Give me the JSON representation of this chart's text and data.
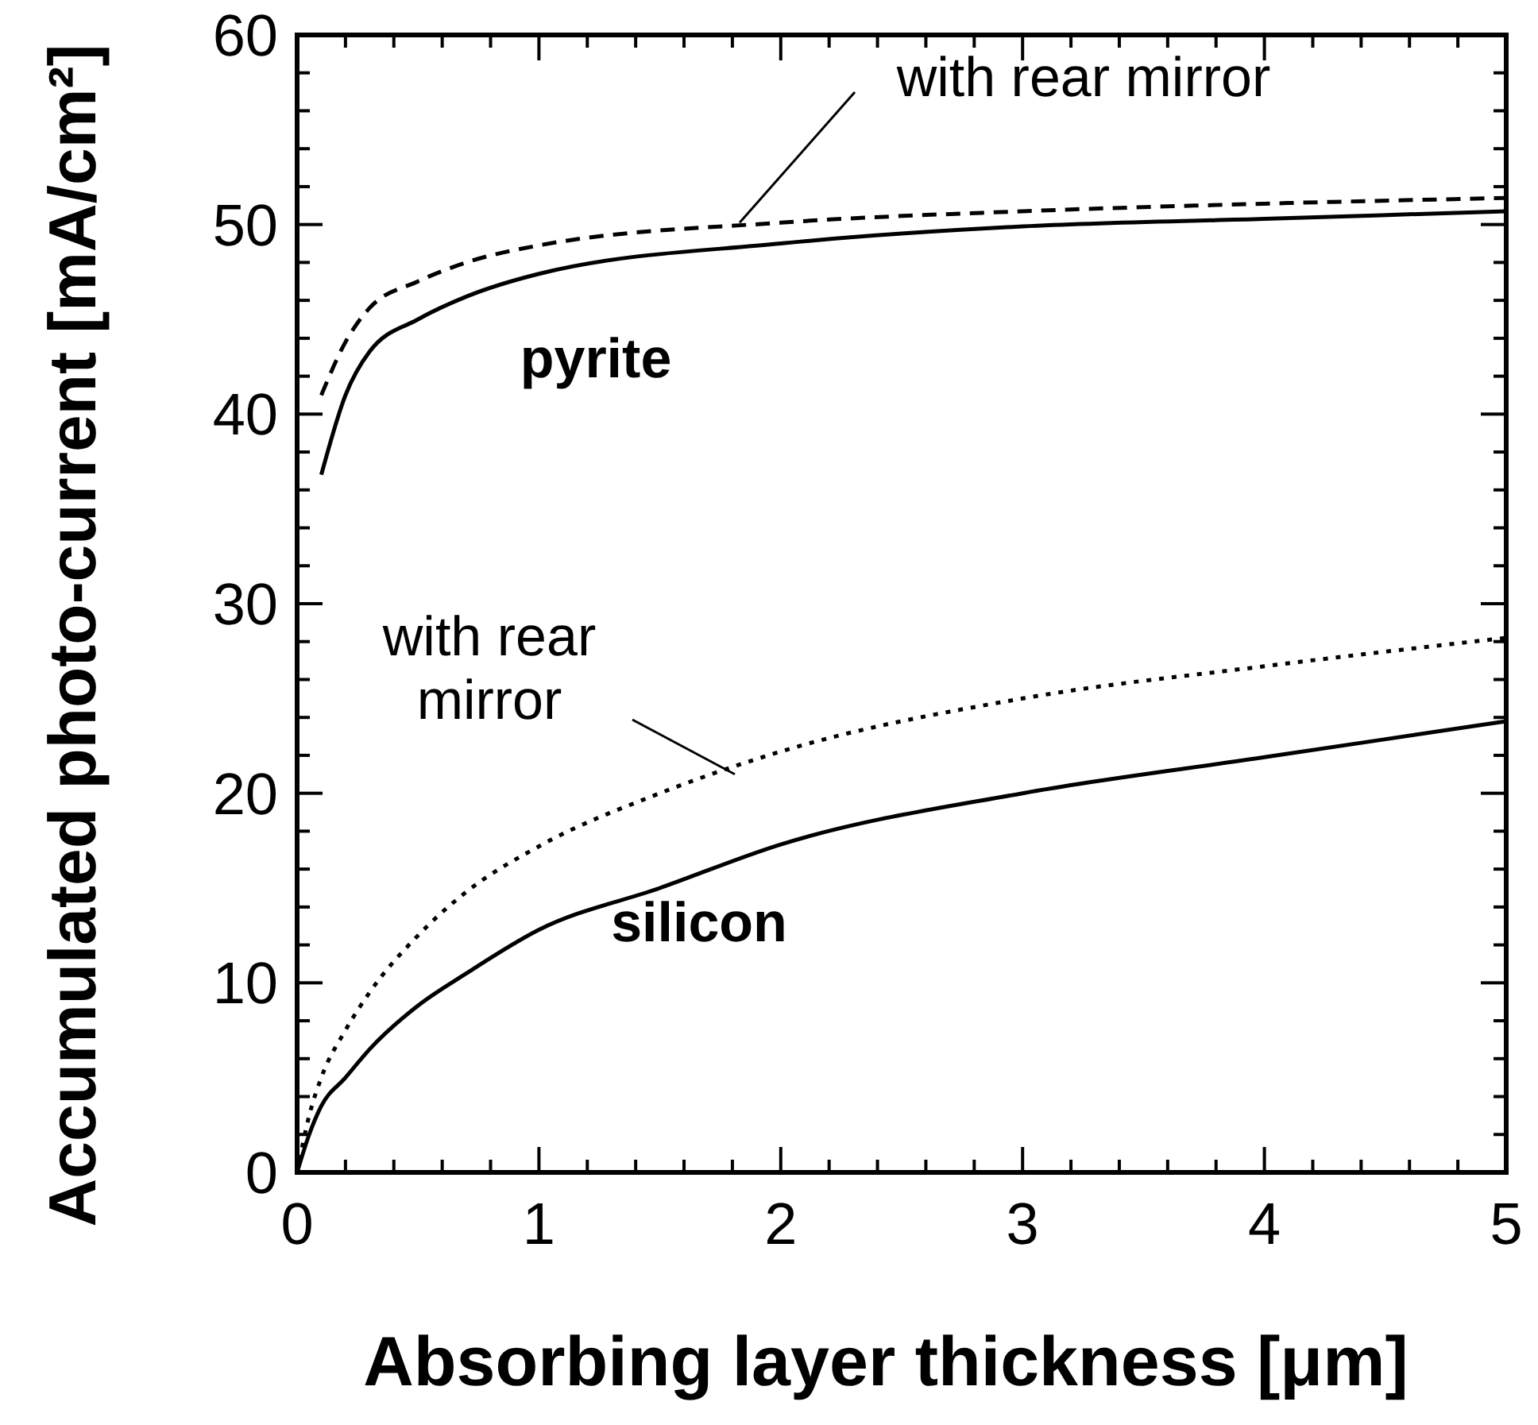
{
  "chart_data": {
    "type": "line",
    "xlabel": "Absorbing layer thickness [μm]",
    "ylabel": "Accumulated photo-current  [mA/cm²]",
    "xlim": [
      0,
      5
    ],
    "ylim": [
      0,
      60
    ],
    "xticks": [
      0,
      1,
      2,
      3,
      4,
      5
    ],
    "yticks": [
      0,
      10,
      20,
      30,
      40,
      50,
      60
    ],
    "grid": false,
    "marker": "none",
    "series": [
      {
        "color": "#000000",
        "line_style": "solid",
        "x": [
          0.1,
          0.2,
          0.3,
          0.5,
          0.7,
          1,
          2,
          3,
          4,
          5
        ],
        "values": [
          36.8,
          41,
          43.3,
          45,
          46.2,
          47.4,
          49,
          49.9,
          50.3,
          50.7
        ]
      },
      {
        "color": "#000000",
        "line_style": "dashed",
        "x": [
          0.1,
          0.2,
          0.3,
          0.5,
          0.7,
          1,
          2,
          3,
          4,
          5
        ],
        "values": [
          41,
          43.8,
          45.6,
          47,
          48,
          48.9,
          50.1,
          50.7,
          51.1,
          51.4
        ]
      },
      {
        "color": "#000000",
        "line_style": "solid",
        "x": [
          0,
          0.05,
          0.1,
          0.2,
          0.3,
          0.5,
          0.7,
          1,
          1.5,
          2,
          3,
          4,
          5
        ],
        "values": [
          0,
          2,
          3.5,
          5,
          6.5,
          8.8,
          10.5,
          12.8,
          15,
          17.3,
          20,
          21.9,
          23.8
        ]
      },
      {
        "color": "#000000",
        "line_style": "dotted",
        "x": [
          0,
          0.05,
          0.1,
          0.2,
          0.3,
          0.5,
          0.7,
          1,
          1.5,
          2,
          3,
          4,
          5
        ],
        "values": [
          0,
          3,
          5,
          7.5,
          9.5,
          12.5,
          14.8,
          17.2,
          20,
          22.2,
          25,
          26.7,
          28.2
        ]
      }
    ],
    "annotations": [
      "pyrite",
      "silicon",
      {
        "text": "with rear mirror",
        "x": 1.83,
        "y": 50.1
      },
      {
        "text": "with rear\nmirror",
        "x": 1.81,
        "y": 21
      }
    ]
  }
}
